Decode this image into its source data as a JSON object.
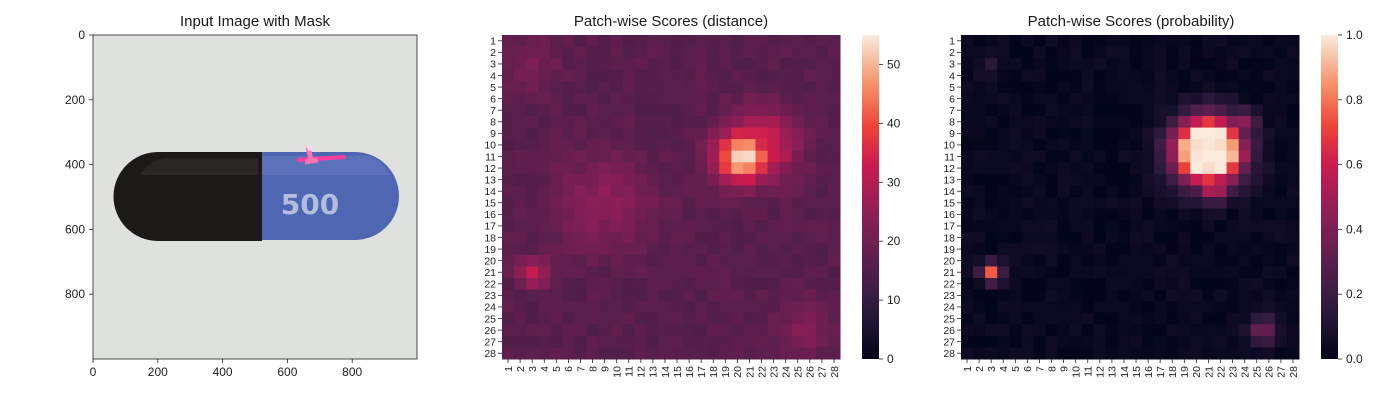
{
  "chart_data": [
    {
      "type": "image",
      "title": "Input Image with Mask",
      "xlim": [
        0,
        1000
      ],
      "ylim": [
        1000,
        0
      ],
      "xticks": [
        "0",
        "200",
        "400",
        "600",
        "800"
      ],
      "yticks": [
        "0",
        "200",
        "400",
        "600",
        "800"
      ],
      "colors": {
        "background": "#dcdedd",
        "cap_dark": "#1c1a19",
        "cap_blue": "#4f66b3",
        "mask": "#ff3d9a",
        "text": "#b3bedf"
      },
      "capsule_text": "500"
    },
    {
      "type": "heatmap",
      "title": "Patch-wise Scores (distance)",
      "rows": 28,
      "cols": 28,
      "xticks": [
        "1",
        "2",
        "3",
        "4",
        "5",
        "6",
        "7",
        "8",
        "9",
        "10",
        "11",
        "12",
        "13",
        "14",
        "15",
        "16",
        "17",
        "18",
        "19",
        "20",
        "21",
        "22",
        "23",
        "24",
        "25",
        "26",
        "27",
        "28"
      ],
      "yticks": [
        "1",
        "2",
        "3",
        "4",
        "5",
        "6",
        "7",
        "8",
        "9",
        "10",
        "11",
        "12",
        "13",
        "14",
        "15",
        "16",
        "17",
        "18",
        "19",
        "20",
        "21",
        "22",
        "23",
        "24",
        "25",
        "26",
        "27",
        "28"
      ],
      "colorbar": {
        "min": 0,
        "max": 55,
        "ticks": [
          "0",
          "10",
          "20",
          "30",
          "40",
          "50"
        ],
        "tick_values": [
          0,
          10,
          20,
          30,
          40,
          50
        ]
      },
      "baseline": 16,
      "hotspots": [
        {
          "row": 11,
          "col": 20.5,
          "peak": 55,
          "spread": 1.6
        },
        {
          "row": 10,
          "col": 22,
          "peak": 36,
          "spread": 2.1
        },
        {
          "row": 21,
          "col": 3,
          "peak": 32,
          "spread": 0.9
        },
        {
          "row": 15,
          "col": 9,
          "peak": 24,
          "spread": 3.0
        },
        {
          "row": 26,
          "col": 25.5,
          "peak": 23,
          "spread": 1.6
        },
        {
          "row": 3,
          "col": 3,
          "peak": 21,
          "spread": 1.8
        }
      ]
    },
    {
      "type": "heatmap",
      "title": "Patch-wise Scores (probability)",
      "rows": 28,
      "cols": 28,
      "xticks": [
        "1",
        "2",
        "3",
        "4",
        "5",
        "6",
        "7",
        "8",
        "9",
        "10",
        "11",
        "12",
        "13",
        "14",
        "15",
        "16",
        "17",
        "18",
        "19",
        "20",
        "21",
        "22",
        "23",
        "24",
        "25",
        "26",
        "27",
        "28"
      ],
      "yticks": [
        "1",
        "2",
        "3",
        "4",
        "5",
        "6",
        "7",
        "8",
        "9",
        "10",
        "11",
        "12",
        "13",
        "14",
        "15",
        "16",
        "17",
        "18",
        "19",
        "20",
        "21",
        "22",
        "23",
        "24",
        "25",
        "26",
        "27",
        "28"
      ],
      "colorbar": {
        "min": 0,
        "max": 1.0,
        "ticks": [
          "0.0",
          "0.2",
          "0.4",
          "0.6",
          "0.8",
          "1.0"
        ],
        "tick_values": [
          0,
          0.2,
          0.4,
          0.6,
          0.8,
          1.0
        ]
      },
      "baseline": 0.02,
      "hotspots": [
        {
          "row": 10.5,
          "col": 21,
          "peak": 1.0,
          "spread": 1.9,
          "plateau": true
        },
        {
          "row": 13.5,
          "col": 21.5,
          "peak": 0.65,
          "spread": 1.0
        },
        {
          "row": 21,
          "col": 3,
          "peak": 0.75,
          "spread": 0.6
        },
        {
          "row": 26,
          "col": 25.5,
          "peak": 0.35,
          "spread": 0.9
        },
        {
          "row": 3,
          "col": 3,
          "peak": 0.12,
          "spread": 0.8
        },
        {
          "row": 8,
          "col": 24,
          "peak": 0.45,
          "spread": 0.8
        }
      ]
    }
  ]
}
